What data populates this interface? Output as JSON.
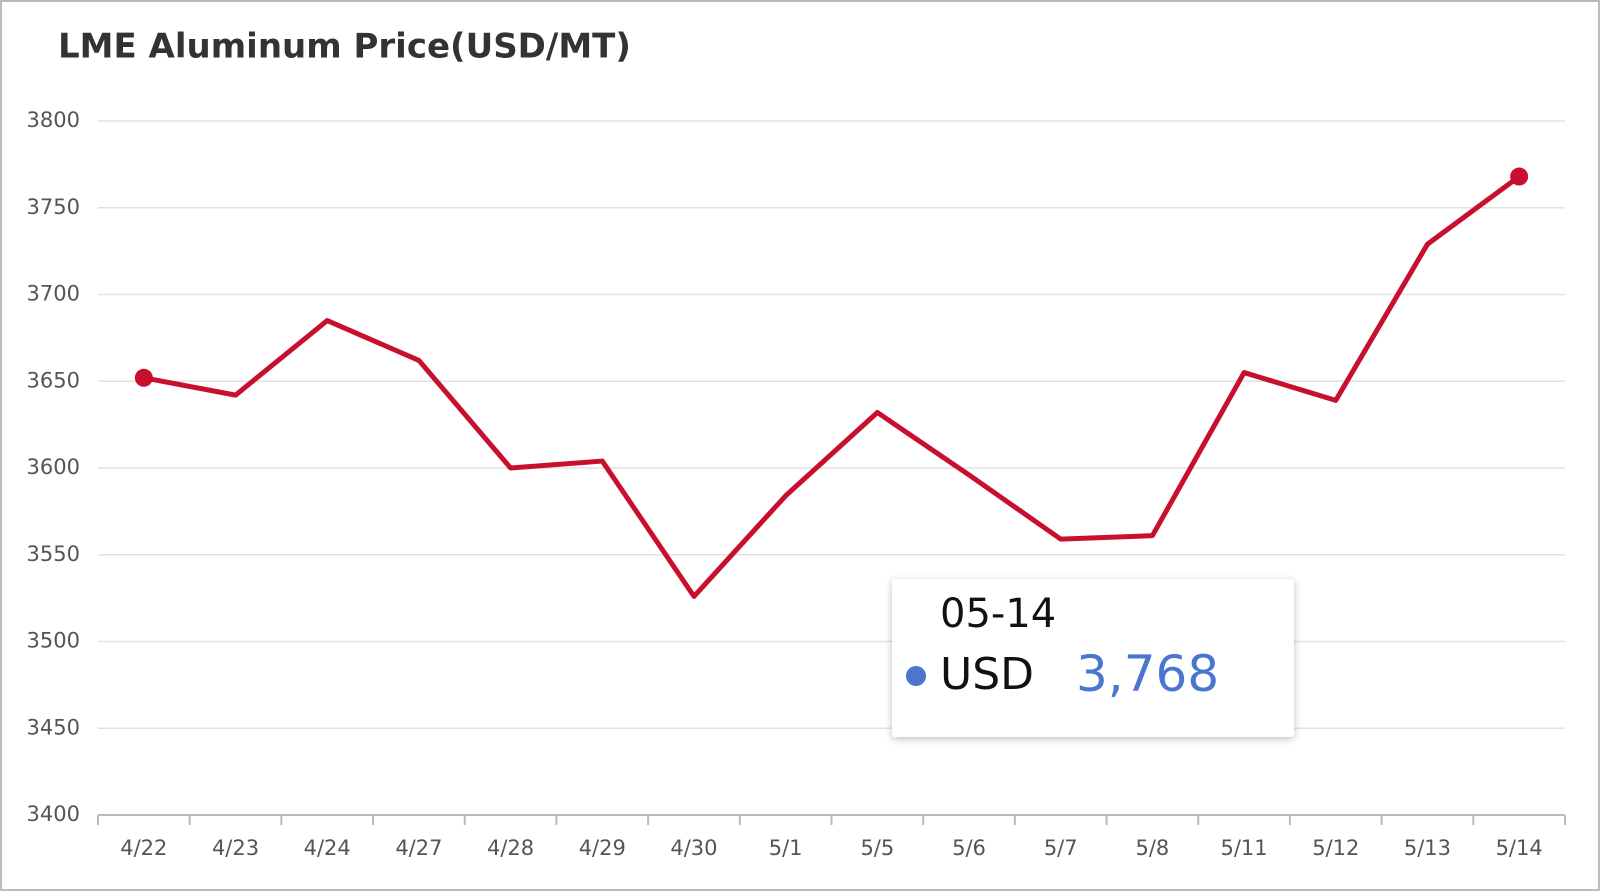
{
  "chart_data": {
    "type": "line",
    "title": "LME Aluminum Price(USD/MT)",
    "categories": [
      "4/22",
      "4/23",
      "4/24",
      "4/27",
      "4/28",
      "4/29",
      "4/30",
      "5/1",
      "5/5",
      "5/6",
      "5/7",
      "5/8",
      "5/11",
      "5/12",
      "5/13",
      "5/14"
    ],
    "series": [
      {
        "name": "USD",
        "color": "#c8102e",
        "values": [
          3652,
          3642,
          3685,
          3662,
          3600,
          3604,
          3526,
          3584,
          3632,
          3596,
          3559,
          3561,
          3655,
          3639,
          3729,
          3768
        ]
      }
    ],
    "ylim": [
      3400,
      3800
    ],
    "yticks": [
      3400,
      3450,
      3500,
      3550,
      3600,
      3650,
      3700,
      3750,
      3800
    ],
    "grid": true,
    "tooltip": {
      "title": "05-14",
      "name": "USD",
      "value": "3,768",
      "color": "#4a76d0"
    }
  }
}
